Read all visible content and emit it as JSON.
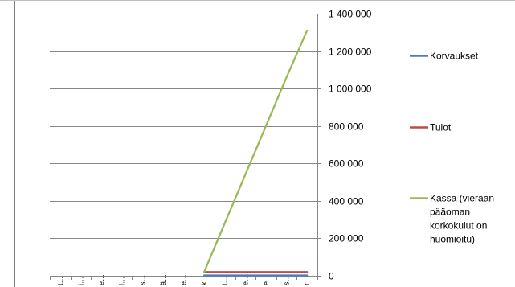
{
  "chart_data": {
    "type": "line",
    "title": "",
    "xlabel": "",
    "ylabel": "",
    "categories": [
      "t…",
      "j…",
      "e…",
      "l…",
      "s…",
      "ä…",
      "e…",
      "k…",
      "t…",
      "e…",
      "e…",
      "s…",
      "t…"
    ],
    "ylim": [
      0,
      1400000
    ],
    "y_ticks": [
      {
        "value": 0,
        "label": "0"
      },
      {
        "value": 200000,
        "label": "200 000"
      },
      {
        "value": 400000,
        "label": "400 000"
      },
      {
        "value": 600000,
        "label": "600 000"
      },
      {
        "value": 800000,
        "label": "800 000"
      },
      {
        "value": 1000000,
        "label": "1 000 000"
      },
      {
        "value": 1200000,
        "label": "1 200 000"
      },
      {
        "value": 1400000,
        "label": "1 400 000"
      }
    ],
    "y_axis_position": "right",
    "grid": true,
    "legend_position": "right",
    "series": [
      {
        "name": "Korvaukset",
        "color": "#4a7ebb",
        "values": [
          null,
          null,
          null,
          null,
          null,
          null,
          null,
          2000,
          2000,
          2000,
          2000,
          2000,
          2000
        ]
      },
      {
        "name": "Tulot",
        "color": "#be4b48",
        "values": [
          null,
          null,
          null,
          null,
          null,
          null,
          null,
          20000,
          20000,
          20000,
          20000,
          20000,
          20000
        ]
      },
      {
        "name": "Kassa (vieraan\npääoman\nkorkokulut on\nhuomioitu)",
        "color": "#98b954",
        "values": [
          null,
          null,
          null,
          null,
          null,
          null,
          null,
          20000,
          280000,
          540000,
          800000,
          1060000,
          1310000
        ]
      }
    ]
  }
}
